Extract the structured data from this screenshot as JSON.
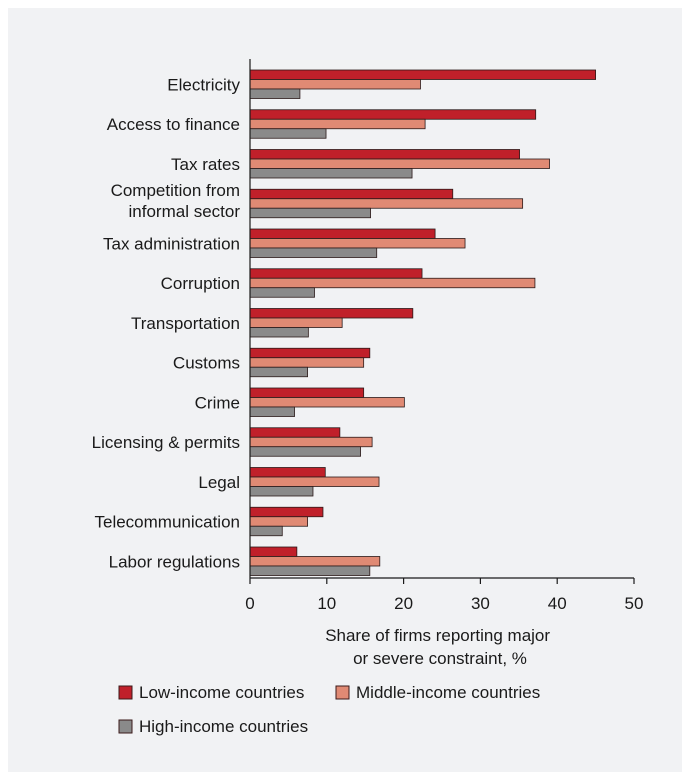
{
  "chart_data": {
    "type": "bar",
    "orientation": "horizontal",
    "categories": [
      [
        "Electricity"
      ],
      [
        "Access to finance"
      ],
      [
        "Tax rates"
      ],
      [
        "Competition from",
        "informal sector"
      ],
      [
        "Tax administration"
      ],
      [
        "Corruption"
      ],
      [
        "Transportation"
      ],
      [
        "Customs"
      ],
      [
        "Crime"
      ],
      [
        "Licensing & permits"
      ],
      [
        "Legal"
      ],
      [
        "Telecommunication"
      ],
      [
        "Labor regulations"
      ]
    ],
    "series": [
      {
        "name": "Low-income countries",
        "color": "#c0202a",
        "values": [
          45,
          37.2,
          35.1,
          26.4,
          24.1,
          22.4,
          21.2,
          15.6,
          14.8,
          11.7,
          9.8,
          9.5,
          6.1
        ]
      },
      {
        "name": "Middle-income countries",
        "color": "#e08a74",
        "values": [
          22.2,
          22.8,
          39,
          35.5,
          28,
          37.1,
          12,
          14.8,
          20.1,
          15.9,
          16.8,
          7.5,
          16.9
        ]
      },
      {
        "name": "High-income countries",
        "color": "#8a8a8a",
        "values": [
          6.5,
          9.9,
          21.1,
          15.7,
          16.5,
          8.4,
          7.6,
          7.5,
          5.8,
          14.4,
          8.2,
          4.2,
          15.6
        ]
      }
    ],
    "xlabel": [
      "Share of firms reporting major",
      "or severe constraint, %"
    ],
    "xlim": [
      0,
      50
    ],
    "xticks": [
      0,
      10,
      20,
      30,
      40,
      50
    ],
    "grid": false,
    "legend_position": "bottom-left"
  }
}
